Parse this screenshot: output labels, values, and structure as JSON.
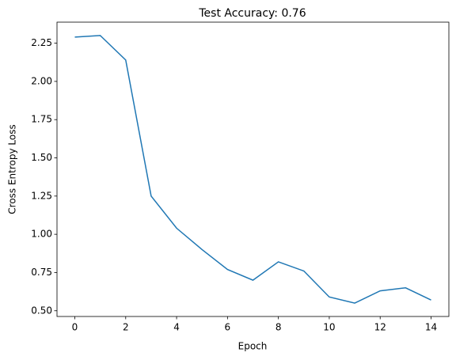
{
  "chart_data": {
    "type": "line",
    "title": "Test Accuracy: 0.76",
    "xlabel": "Epoch",
    "ylabel": "Cross Entropy Loss",
    "x": [
      0,
      1,
      2,
      3,
      4,
      5,
      6,
      7,
      8,
      9,
      10,
      11,
      12,
      13,
      14
    ],
    "series": [
      {
        "color": "#1f77b4",
        "values": [
          2.29,
          2.3,
          2.14,
          1.25,
          1.04,
          0.9,
          0.77,
          0.7,
          0.82,
          0.76,
          0.59,
          0.55,
          0.63,
          0.65,
          0.57
        ]
      }
    ],
    "xlim": [
      -0.7,
      14.7
    ],
    "xticks": [
      0,
      2,
      4,
      6,
      8,
      10,
      12,
      14
    ],
    "ylim": [
      0.4625,
      2.3875
    ],
    "yticks": [
      {
        "value": 0.5,
        "label": "0.50"
      },
      {
        "value": 0.75,
        "label": "0.75"
      },
      {
        "value": 1.0,
        "label": "1.00"
      },
      {
        "value": 1.25,
        "label": "1.25"
      },
      {
        "value": 1.5,
        "label": "1.50"
      },
      {
        "value": 1.75,
        "label": "1.75"
      },
      {
        "value": 2.0,
        "label": "2.00"
      },
      {
        "value": 2.25,
        "label": "2.25"
      }
    ],
    "grid": false
  }
}
